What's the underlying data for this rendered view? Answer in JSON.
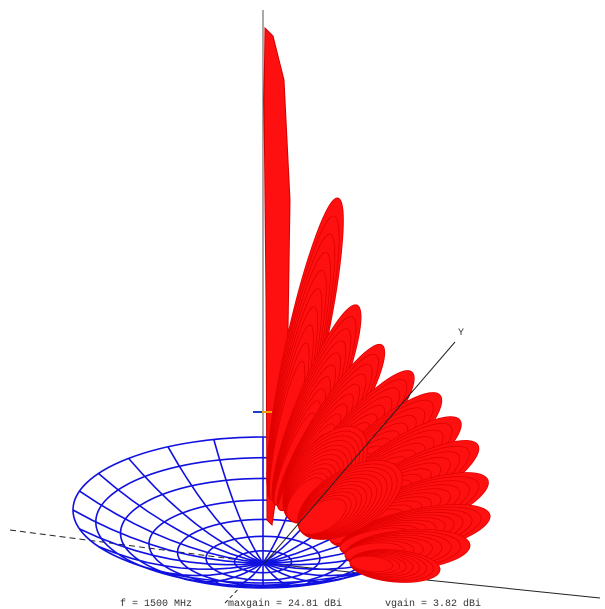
{
  "axis_label": "Y",
  "status": {
    "frequency": "f = 1500 MHz",
    "maxgain": "maxgain = 24.81 dBi",
    "vgain": "vgain = 3.82 dBi"
  }
}
